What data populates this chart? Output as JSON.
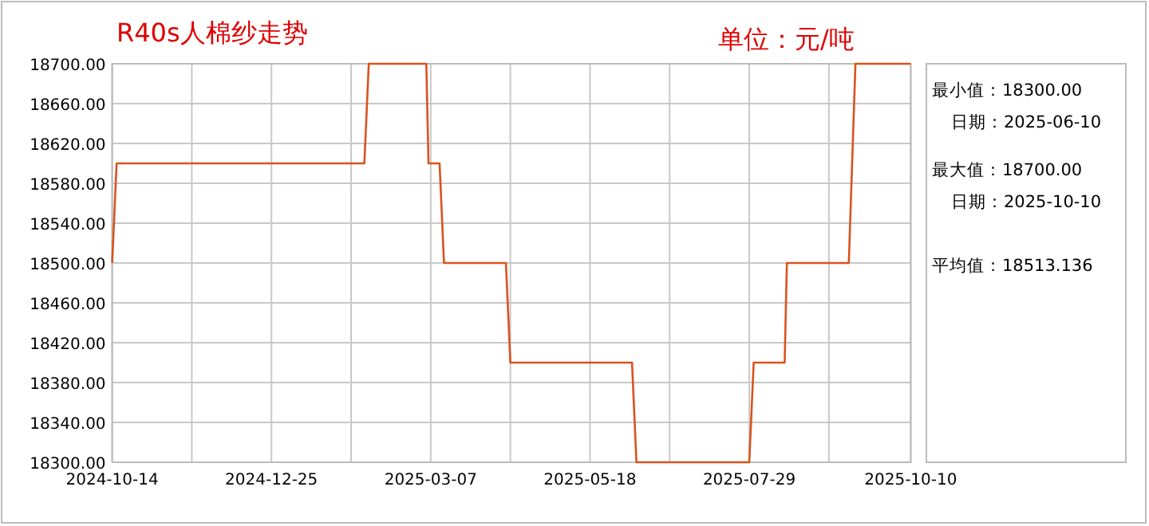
{
  "chart_data": {
    "type": "line",
    "title": "R40s人棉纱走势",
    "subtitle": "单位：元/吨",
    "annotations": [
      "最小值：18300.00",
      "日期：2025-06-10",
      "最大值：18700.00",
      "日期：2025-10-10",
      "平均值：18513.136"
    ],
    "x": [
      "2024-10-14",
      "2024-10-16",
      "2025-02-05",
      "2025-02-07",
      "2025-03-05",
      "2025-03-06",
      "2025-03-11",
      "2025-03-13",
      "2025-04-10",
      "2025-04-12",
      "2025-06-06",
      "2025-06-08",
      "2025-07-29",
      "2025-07-31",
      "2025-08-14",
      "2025-08-15",
      "2025-09-12",
      "2025-09-15",
      "2025-10-10"
    ],
    "series": [
      {
        "color": "#d9531e",
        "values": [
          18500,
          18600,
          18600,
          18700,
          18700,
          18600,
          18600,
          18500,
          18500,
          18400,
          18400,
          18300,
          18300,
          18400,
          18400,
          18500,
          18500,
          18700,
          18700
        ]
      }
    ],
    "xlim": [
      "2024-10-14",
      "2025-10-10"
    ],
    "xticks": [
      "2024-10-14",
      {
        "value": "2024-11-19",
        "label": null
      },
      "2024-12-25",
      {
        "value": "2025-01-30",
        "label": null
      },
      "2025-03-07",
      {
        "value": "2025-04-12",
        "label": null
      },
      "2025-05-18",
      {
        "value": "2025-06-23",
        "label": null
      },
      "2025-07-29",
      {
        "value": "2025-09-03",
        "label": null
      },
      "2025-10-10"
    ],
    "ylim": [
      18300,
      18700
    ],
    "yticks": [
      {
        "value": 18300,
        "label": "18300.00"
      },
      {
        "value": 18340,
        "label": "18340.00"
      },
      {
        "value": 18380,
        "label": "18380.00"
      },
      {
        "value": 18420,
        "label": "18420.00"
      },
      {
        "value": 18460,
        "label": "18460.00"
      },
      {
        "value": 18500,
        "label": "18500.00"
      },
      {
        "value": 18540,
        "label": "18540.00"
      },
      {
        "value": 18580,
        "label": "18580.00"
      },
      {
        "value": 18620,
        "label": "18620.00"
      },
      {
        "value": 18660,
        "label": "18660.00"
      },
      {
        "value": 18700,
        "label": "18700.00"
      }
    ],
    "grid": true
  }
}
